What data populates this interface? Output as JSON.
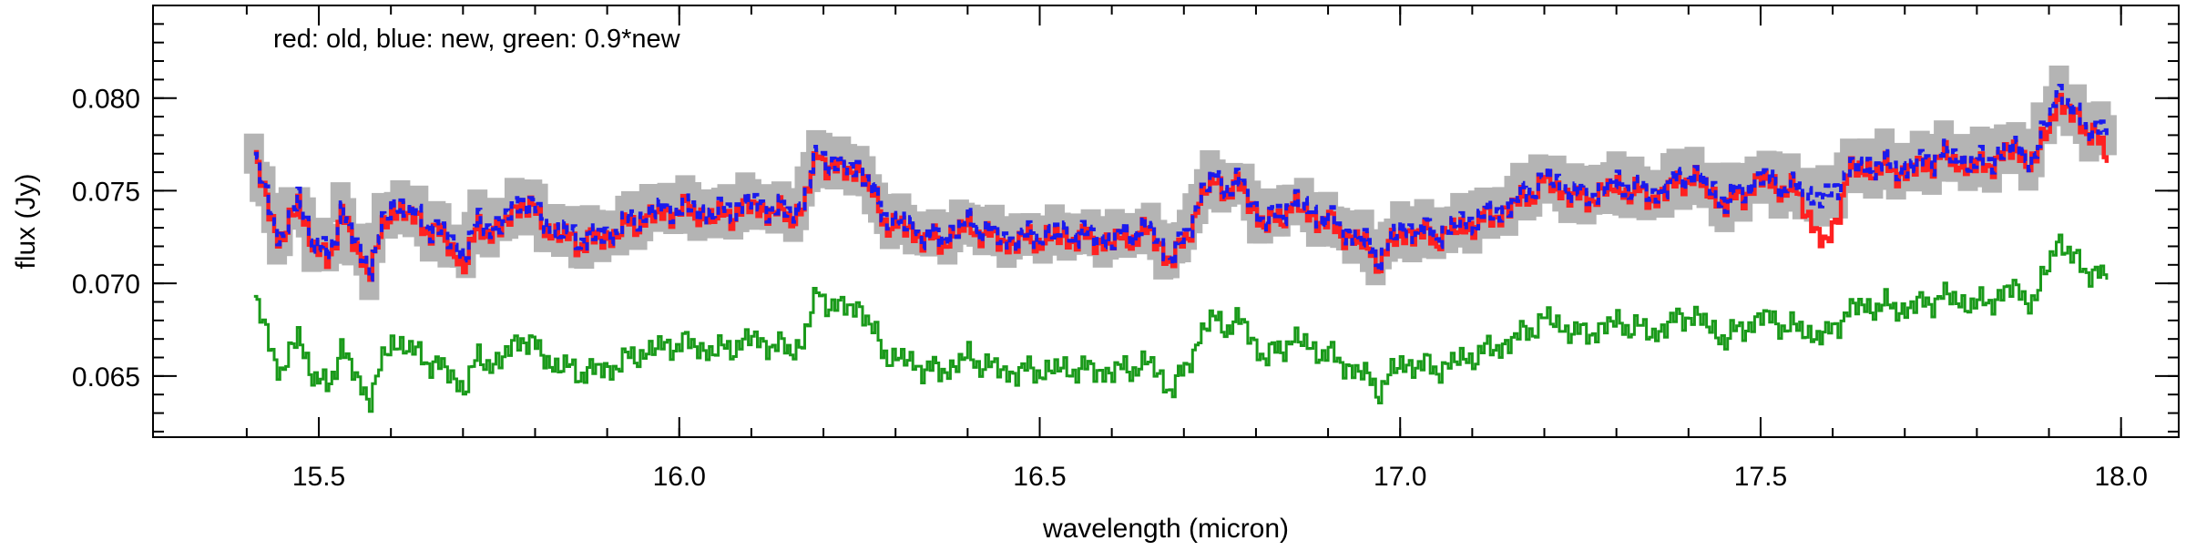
{
  "chart_data": {
    "type": "line",
    "title": "",
    "xlabel": "wavelength (micron)",
    "ylabel": "flux (Jy)",
    "annotation": "red: old, blue: new, green: 0.9*new",
    "xlim": [
      15.27,
      18.08
    ],
    "ylim": [
      0.0617,
      0.085
    ],
    "xticks": [
      15.5,
      16.0,
      16.5,
      17.0,
      17.5,
      18.0
    ],
    "xtick_labels": [
      "15.5",
      "16.0",
      "16.5",
      "17.0",
      "17.5",
      "18.0"
    ],
    "yticks": [
      0.065,
      0.07,
      0.075,
      0.08
    ],
    "ytick_labels": [
      "0.065",
      "0.070",
      "0.075",
      "0.080"
    ],
    "grid": false,
    "colors": {
      "old": "#ff2020",
      "new": "#1a1aee",
      "scaled": "#1a9a1a",
      "uncertainty": "#b4b4b4"
    },
    "x": [
      15.41,
      15.43,
      15.45,
      15.47,
      15.49,
      15.51,
      15.53,
      15.55,
      15.57,
      15.6,
      15.63,
      15.67,
      15.7,
      15.72,
      15.75,
      15.78,
      15.82,
      15.86,
      15.9,
      15.95,
      16.0,
      16.05,
      16.1,
      16.15,
      16.17,
      16.19,
      16.22,
      16.25,
      16.28,
      16.32,
      16.36,
      16.4,
      16.45,
      16.5,
      16.55,
      16.6,
      16.65,
      16.68,
      16.7,
      16.72,
      16.74,
      16.76,
      16.78,
      16.81,
      16.85,
      16.9,
      16.95,
      16.97,
      17.0,
      17.05,
      17.1,
      17.15,
      17.2,
      17.25,
      17.3,
      17.35,
      17.4,
      17.45,
      17.5,
      17.55,
      17.59,
      17.62,
      17.66,
      17.7,
      17.75,
      17.8,
      17.85,
      17.88,
      17.91,
      17.93,
      17.96,
      17.98
    ],
    "series": [
      {
        "name": "old",
        "values": [
          0.0768,
          0.0738,
          0.0722,
          0.0745,
          0.072,
          0.0712,
          0.0738,
          0.0718,
          0.0708,
          0.0742,
          0.0735,
          0.0725,
          0.071,
          0.073,
          0.0728,
          0.0745,
          0.0728,
          0.0722,
          0.0725,
          0.0735,
          0.074,
          0.0735,
          0.0742,
          0.0736,
          0.074,
          0.077,
          0.076,
          0.0762,
          0.0735,
          0.0728,
          0.0722,
          0.0731,
          0.0722,
          0.0724,
          0.0725,
          0.0722,
          0.0728,
          0.0712,
          0.0722,
          0.0745,
          0.0755,
          0.075,
          0.0752,
          0.073,
          0.0742,
          0.0732,
          0.072,
          0.0712,
          0.0728,
          0.0725,
          0.0732,
          0.074,
          0.0755,
          0.0745,
          0.0752,
          0.0746,
          0.0758,
          0.0742,
          0.0756,
          0.0748,
          0.0718,
          0.076,
          0.0762,
          0.076,
          0.0768,
          0.0762,
          0.0772,
          0.0765,
          0.08,
          0.079,
          0.0782,
          0.0765
        ]
      },
      {
        "name": "new",
        "values": [
          0.077,
          0.074,
          0.0724,
          0.0748,
          0.0722,
          0.0714,
          0.074,
          0.072,
          0.071,
          0.0744,
          0.0737,
          0.0727,
          0.0716,
          0.0732,
          0.073,
          0.0747,
          0.073,
          0.0724,
          0.0727,
          0.0737,
          0.0742,
          0.0737,
          0.0744,
          0.0738,
          0.0742,
          0.0772,
          0.0762,
          0.0764,
          0.0737,
          0.073,
          0.0724,
          0.0733,
          0.0724,
          0.0726,
          0.0727,
          0.0724,
          0.073,
          0.0714,
          0.0724,
          0.0747,
          0.0757,
          0.0752,
          0.0754,
          0.0732,
          0.0744,
          0.0734,
          0.0722,
          0.0714,
          0.073,
          0.0727,
          0.0734,
          0.0742,
          0.0757,
          0.0747,
          0.0754,
          0.0748,
          0.076,
          0.0744,
          0.0758,
          0.075,
          0.0745,
          0.0762,
          0.0764,
          0.0762,
          0.077,
          0.0764,
          0.0774,
          0.0767,
          0.0806,
          0.0792,
          0.0784,
          0.078
        ]
      },
      {
        "name": "0.9*new",
        "values": [
          0.0693,
          0.0666,
          0.0652,
          0.0673,
          0.065,
          0.0643,
          0.0666,
          0.0648,
          0.0639,
          0.067,
          0.0663,
          0.0654,
          0.0644,
          0.0659,
          0.0657,
          0.0672,
          0.0657,
          0.0652,
          0.0654,
          0.0663,
          0.0668,
          0.0663,
          0.067,
          0.0664,
          0.0668,
          0.0695,
          0.0686,
          0.0688,
          0.0663,
          0.0657,
          0.0652,
          0.066,
          0.0652,
          0.0653,
          0.0654,
          0.0652,
          0.0657,
          0.0643,
          0.0652,
          0.0672,
          0.0681,
          0.0677,
          0.0679,
          0.0659,
          0.067,
          0.0661,
          0.065,
          0.0643,
          0.0657,
          0.0654,
          0.0661,
          0.0668,
          0.0681,
          0.0672,
          0.0679,
          0.0673,
          0.0684,
          0.067,
          0.0682,
          0.0675,
          0.0671,
          0.0686,
          0.0688,
          0.0686,
          0.0693,
          0.0688,
          0.0697,
          0.069,
          0.0725,
          0.0713,
          0.0706,
          0.0702
        ]
      }
    ]
  }
}
